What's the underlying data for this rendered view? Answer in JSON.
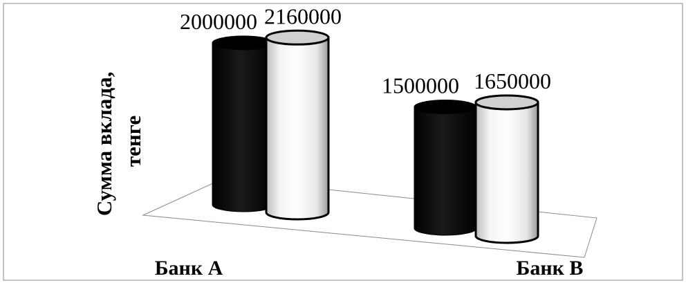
{
  "chart_data": {
    "type": "bar",
    "style": "3d-cylinder",
    "title": "",
    "xlabel": "",
    "ylabel_lines": [
      "Сумма вклада,",
      "тенге"
    ],
    "categories": [
      "Банк А",
      "Банк В"
    ],
    "series": [
      {
        "values": [
          2000000,
          1500000
        ],
        "color": "#000000"
      },
      {
        "values": [
          2160000,
          1650000
        ],
        "color": "#ffffff"
      }
    ],
    "data_labels": [
      [
        "2000000",
        "2160000"
      ],
      [
        "1500000",
        "1650000"
      ]
    ],
    "grid": false,
    "legend": "none"
  }
}
